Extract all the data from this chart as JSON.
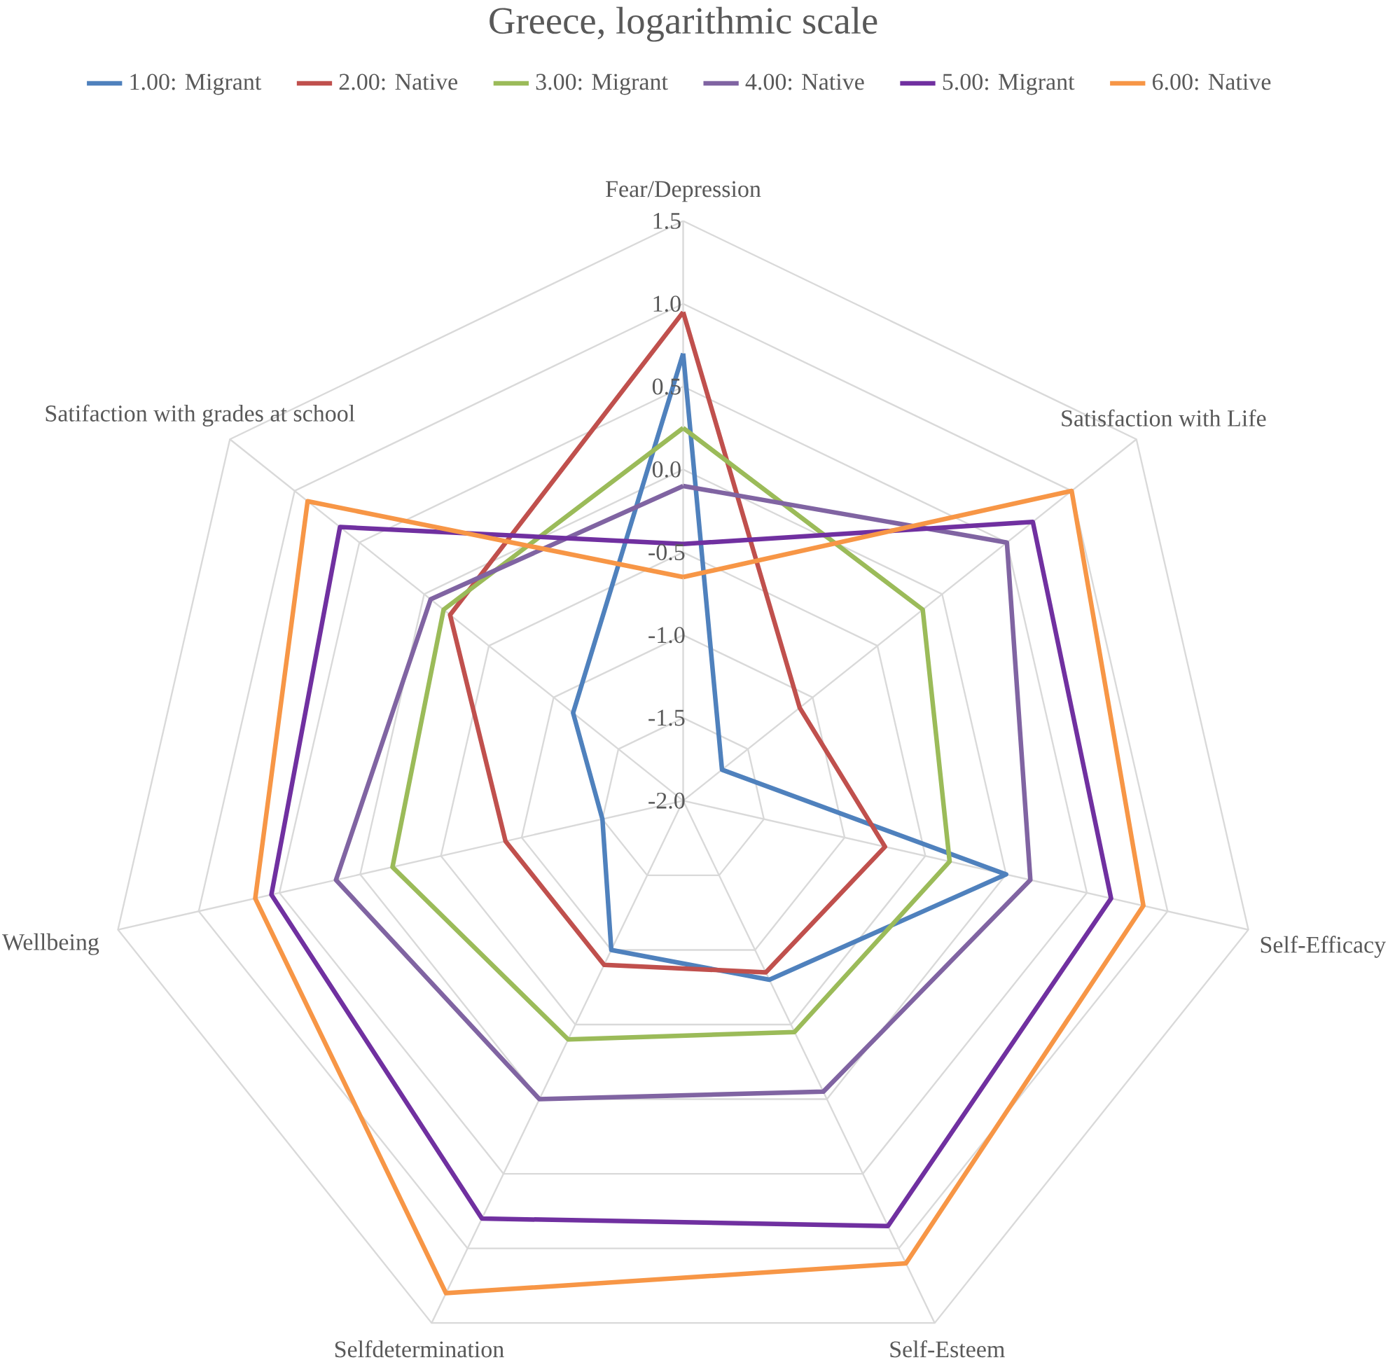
{
  "chart_data": {
    "type": "radar",
    "title": "Greece, logarithmic scale",
    "categories": [
      "Fear/Depression",
      "Satisfaction with Life",
      "Self-Efficacy",
      "Self-Esteem",
      "Selfdetermination",
      "Wellbeing",
      "Satifaction with grades at school"
    ],
    "ylim": [
      -2,
      1.5
    ],
    "yticks": [
      {
        "value": -2,
        "label": "-2.0"
      },
      -1.5,
      {
        "value": -1,
        "label": "-1.0"
      },
      -0.5,
      {
        "value": 0,
        "label": "0.0"
      },
      0.5,
      {
        "value": 1,
        "label": "1.0"
      },
      1.5
    ],
    "grid": true,
    "legend": "top",
    "series": [
      {
        "name": "1.00: Migrant",
        "color": "#4f81bd",
        "values": [
          0.7,
          -1.7,
          0.0,
          -0.8,
          -1.0,
          -1.5,
          -1.15
        ]
      },
      {
        "name": "2.00: Native",
        "color": "#c0504d",
        "values": [
          0.95,
          -1.1,
          -0.75,
          -0.85,
          -0.9,
          -0.9,
          -0.2
        ]
      },
      {
        "name": "3.00: Migrant",
        "color": "#9bbb59",
        "values": [
          0.25,
          -0.15,
          -0.35,
          -0.45,
          -0.4,
          -0.2,
          -0.15
        ]
      },
      {
        "name": "4.00: Native",
        "color": "#8064a2",
        "values": [
          -0.1,
          0.5,
          0.15,
          -0.05,
          0.0,
          0.15,
          -0.05
        ]
      },
      {
        "name": "5.00: Migrant",
        "color": "#7030a0",
        "values": [
          -0.45,
          0.7,
          0.65,
          0.85,
          0.8,
          0.55,
          0.65
        ]
      },
      {
        "name": "6.00: Native",
        "color": "#f79646",
        "values": [
          -0.65,
          1.0,
          0.85,
          1.1,
          1.3,
          0.65,
          0.9
        ]
      }
    ]
  }
}
